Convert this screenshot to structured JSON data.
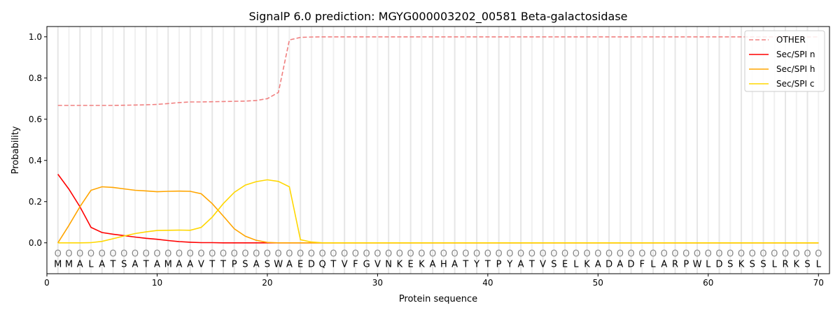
{
  "chart_data": {
    "type": "line",
    "title": "SignalP 6.0 prediction: MGYG000003202_00581 Beta-galactosidase",
    "xlabel": "Protein sequence",
    "ylabel": "Probability",
    "xlim": [
      0,
      71
    ],
    "ylim": [
      -0.15,
      1.05
    ],
    "xticks": [
      0,
      10,
      20,
      30,
      40,
      50,
      60,
      70
    ],
    "yticks": [
      "0.0",
      "0.2",
      "0.4",
      "0.6",
      "0.8",
      "1.0"
    ],
    "legend_position": "top-right",
    "sequence": [
      "M",
      "M",
      "A",
      "L",
      "A",
      "T",
      "S",
      "A",
      "T",
      "A",
      "M",
      "A",
      "A",
      "V",
      "T",
      "T",
      "P",
      "S",
      "A",
      "S",
      "W",
      "A",
      "E",
      "D",
      "Q",
      "T",
      "V",
      "F",
      "G",
      "V",
      "N",
      "K",
      "E",
      "K",
      "A",
      "H",
      "A",
      "T",
      "Y",
      "T",
      "P",
      "Y",
      "A",
      "T",
      "V",
      "S",
      "E",
      "L",
      "K",
      "A",
      "D",
      "A",
      "D",
      "F",
      "L",
      "A",
      "R",
      "P",
      "W",
      "L",
      "D",
      "S",
      "K",
      "S",
      "S",
      "L",
      "R",
      "K",
      "S",
      "L"
    ],
    "position_marker": "O",
    "series": [
      {
        "name": "OTHER",
        "color": "#f08080",
        "dashed": true,
        "values": [
          0.667,
          0.667,
          0.667,
          0.667,
          0.667,
          0.667,
          0.668,
          0.669,
          0.67,
          0.672,
          0.676,
          0.681,
          0.684,
          0.684,
          0.685,
          0.686,
          0.687,
          0.688,
          0.691,
          0.7,
          0.73,
          0.985,
          0.997,
          0.999,
          1.0
        ]
      },
      {
        "name": "Sec/SPI n",
        "color": "#ff0000",
        "dashed": false,
        "values": [
          0.333,
          0.26,
          0.175,
          0.075,
          0.05,
          0.042,
          0.035,
          0.028,
          0.022,
          0.017,
          0.011,
          0.006,
          0.003,
          0.001,
          0.001,
          0.0
        ]
      },
      {
        "name": "Sec/SPI h",
        "color": "#ffa500",
        "dashed": false,
        "values": [
          0.0,
          0.085,
          0.175,
          0.255,
          0.272,
          0.269,
          0.262,
          0.255,
          0.252,
          0.248,
          0.25,
          0.251,
          0.25,
          0.238,
          0.19,
          0.13,
          0.068,
          0.032,
          0.012,
          0.002,
          0.0
        ]
      },
      {
        "name": "Sec/SPI c",
        "color": "#ffd700",
        "dashed": false,
        "values": [
          0.0,
          0.0,
          0.0,
          0.001,
          0.007,
          0.02,
          0.033,
          0.045,
          0.053,
          0.06,
          0.061,
          0.062,
          0.061,
          0.075,
          0.125,
          0.19,
          0.245,
          0.28,
          0.297,
          0.306,
          0.298,
          0.272,
          0.015,
          0.004,
          0.0
        ]
      }
    ]
  }
}
